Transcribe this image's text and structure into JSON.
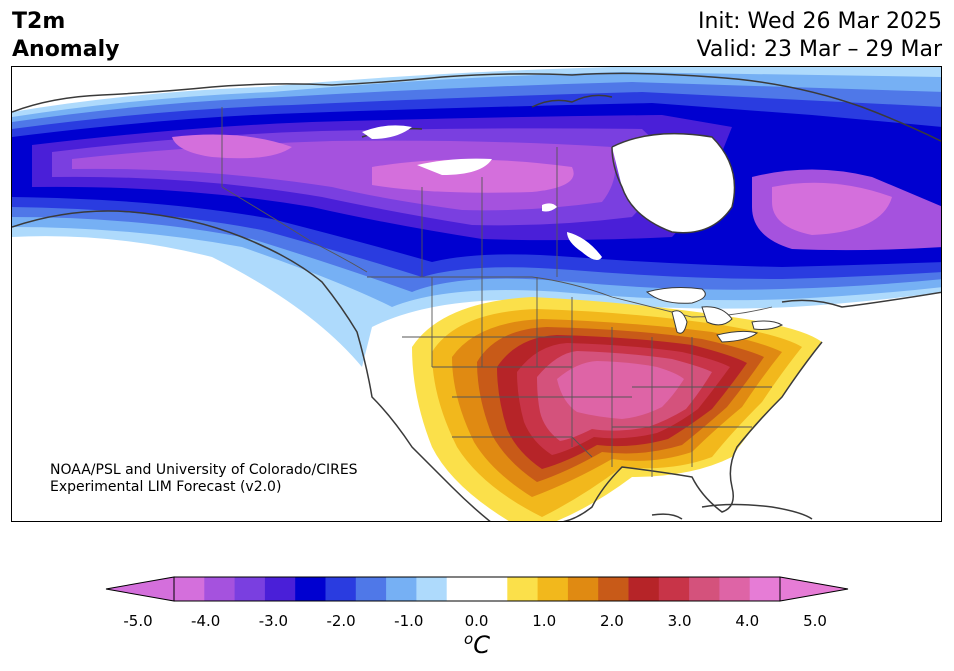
{
  "header": {
    "left_line1": "T2m",
    "left_line2": "Anomaly",
    "init": "Init: Wed 26 Mar 2025",
    "valid": "Valid: 23 Mar – 29 Mar"
  },
  "map": {
    "credit_line1": "NOAA/PSL and University of Colorado/CIRES",
    "credit_line2": "Experimental LIM Forecast (v2.0)"
  },
  "colorbar": {
    "ticks": [
      "-5.0",
      "-4.0",
      "-3.0",
      "-2.0",
      "-1.0",
      "0.0",
      "1.0",
      "2.0",
      "3.0",
      "4.0",
      "5.0"
    ],
    "unit_sup": "o",
    "unit": "C",
    "colors": [
      "#d46fdc",
      "#a552de",
      "#7a3fe0",
      "#4a1fd8",
      "#0000d0",
      "#2a3ce0",
      "#4f78e8",
      "#76b0f4",
      "#aedafc",
      "#ffffff",
      "#ffffff",
      "#fbe04a",
      "#f2b81c",
      "#e08a12",
      "#c85a18",
      "#b62428",
      "#c83448",
      "#d4527c",
      "#de64a6",
      "#e67cd6"
    ]
  }
}
